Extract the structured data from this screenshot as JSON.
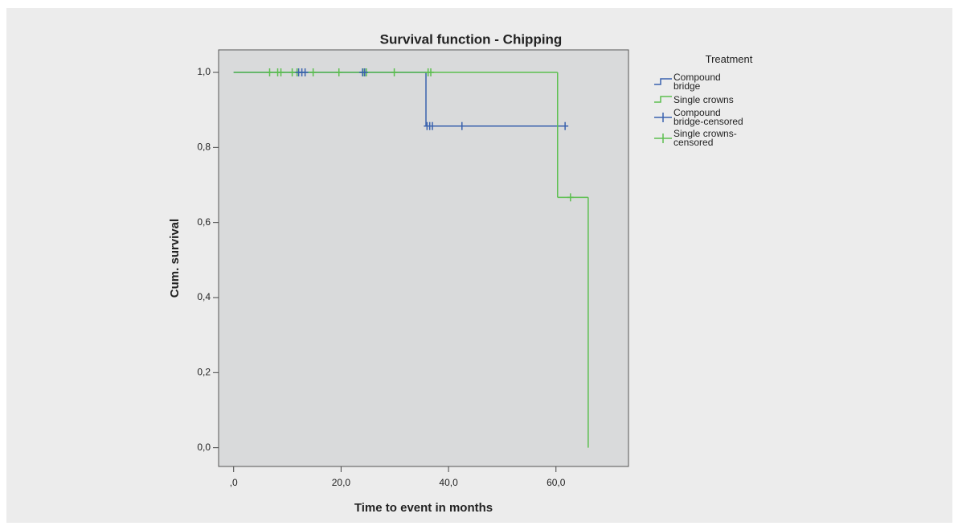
{
  "chart_data": {
    "type": "step",
    "title": "Survival function - Chipping",
    "x_label": "Time to event in months",
    "y_label": "Cum. survival",
    "legend_title": "Treatment",
    "xlim": [
      -2.8,
      73.5
    ],
    "ylim": [
      -0.05,
      1.06
    ],
    "xticks": [
      {
        "value": 0,
        "label": ",0"
      },
      {
        "value": 20,
        "label": "20,0"
      },
      {
        "value": 40,
        "label": "40,0"
      },
      {
        "value": 60,
        "label": "60,0"
      }
    ],
    "yticks": [
      {
        "value": 0,
        "label": "0,0"
      },
      {
        "value": 0.2,
        "label": "0,2"
      },
      {
        "value": 0.4,
        "label": "0,4"
      },
      {
        "value": 0.6,
        "label": "0,6"
      },
      {
        "value": 0.8,
        "label": "0,8"
      },
      {
        "value": 1,
        "label": "1,0"
      }
    ],
    "series": [
      {
        "name": "Compound bridge",
        "color": "#3a62ae",
        "x": [
          0,
          35.8,
          61.7
        ],
        "values": [
          1,
          0.857,
          0.857
        ]
      },
      {
        "name": "Single crowns",
        "color": "#5cbf4f",
        "x": [
          0,
          60.3,
          66
        ],
        "values": [
          1,
          0.667,
          0
        ]
      }
    ],
    "censored": [
      {
        "name": "Compound bridge-censored",
        "color": "#3a62ae",
        "x": [
          12.1,
          12.7,
          13.3,
          24.0,
          24.4,
          36.0,
          36.5,
          37.0,
          42.5,
          61.7
        ],
        "values": [
          1,
          1,
          1,
          1,
          1,
          0.857,
          0.857,
          0.857,
          0.857,
          0.857
        ]
      },
      {
        "name": "Single crowns-censored",
        "color": "#5cbf4f",
        "x": [
          6.7,
          8.2,
          8.8,
          10.9,
          11.8,
          14.8,
          19.6,
          24.1,
          24.7,
          29.9,
          36.2,
          36.7,
          62.7
        ],
        "values": [
          1,
          1,
          1,
          1,
          1,
          1,
          1,
          1,
          1,
          1,
          1,
          1,
          0.667
        ]
      }
    ]
  }
}
